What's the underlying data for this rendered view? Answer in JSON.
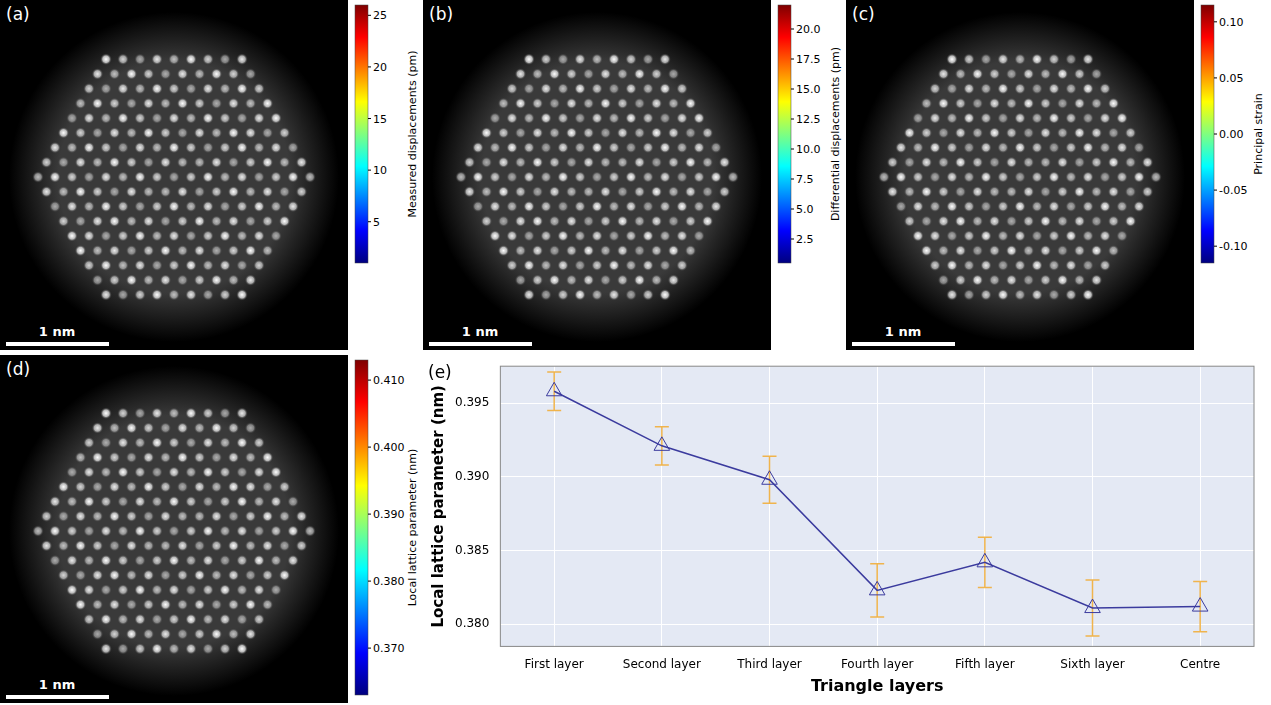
{
  "panels": [
    {
      "panel": "(a)",
      "scale_bar": "1 nm",
      "colorbar": {
        "label": "Measured displacements (pm)",
        "range": [
          1,
          26
        ],
        "ticks": [
          5,
          10,
          15,
          20,
          25
        ]
      }
    },
    {
      "panel": "(b)",
      "scale_bar": "1 nm",
      "colorbar": {
        "label": "Differential displacements (pm)",
        "range": [
          0.5,
          22
        ],
        "ticks": [
          {
            "value": 2.5,
            "label": "2.5"
          },
          {
            "value": 5,
            "label": "5.0"
          },
          {
            "value": 7.5,
            "label": "7.5"
          },
          {
            "value": 10,
            "label": "10.0"
          },
          {
            "value": 12.5,
            "label": "12.5"
          },
          {
            "value": 15,
            "label": "15.0"
          },
          {
            "value": 17.5,
            "label": "17.5"
          },
          {
            "value": 20,
            "label": "20.0"
          }
        ]
      }
    },
    {
      "panel": "(c)",
      "scale_bar": "1 nm",
      "colorbar": {
        "label": "Principal strain",
        "range": [
          -0.115,
          0.115
        ],
        "ticks": [
          {
            "value": -0.1,
            "label": "-0.10"
          },
          {
            "value": -0.05,
            "label": "-0.05"
          },
          {
            "value": 0,
            "label": "0.00"
          },
          {
            "value": 0.05,
            "label": "0.05"
          },
          {
            "value": 0.1,
            "label": "0.10"
          }
        ]
      }
    },
    {
      "panel": "(d)",
      "scale_bar": "1 nm",
      "colorbar": {
        "label": "Local lattice parameter (nm)",
        "range": [
          0.363,
          0.413
        ],
        "ticks": [
          {
            "value": 0.37,
            "label": "0.370"
          },
          {
            "value": 0.38,
            "label": "0.380"
          },
          {
            "value": 0.39,
            "label": "0.390"
          },
          {
            "value": 0.4,
            "label": "0.400"
          },
          {
            "value": 0.41,
            "label": "0.410"
          }
        ]
      }
    }
  ],
  "chart_data": {
    "panel": "(e)",
    "type": "line",
    "x_label": "Triangle layers",
    "y_label": "Local lattice parameter (nm)",
    "categories": [
      "First layer",
      "Second layer",
      "Third layer",
      "Fourth layer",
      "Fifth layer",
      "Sixth layer",
      "Centre"
    ],
    "values": [
      0.3958,
      0.3921,
      0.3898,
      0.3823,
      0.3842,
      0.3811,
      0.3812
    ],
    "errors": [
      0.0013,
      0.0013,
      0.0016,
      0.0018,
      0.0017,
      0.0019,
      0.0017
    ],
    "ylim": [
      0.3785,
      0.3975
    ],
    "yticks": [
      {
        "value": 0.38,
        "label": "0.380"
      },
      {
        "value": 0.385,
        "label": "0.385"
      },
      {
        "value": 0.39,
        "label": "0.390"
      },
      {
        "value": 0.395,
        "label": "0.395"
      }
    ],
    "grid": true,
    "color": "#3b3b9e",
    "marker": "triangle",
    "line_style": "solid"
  }
}
